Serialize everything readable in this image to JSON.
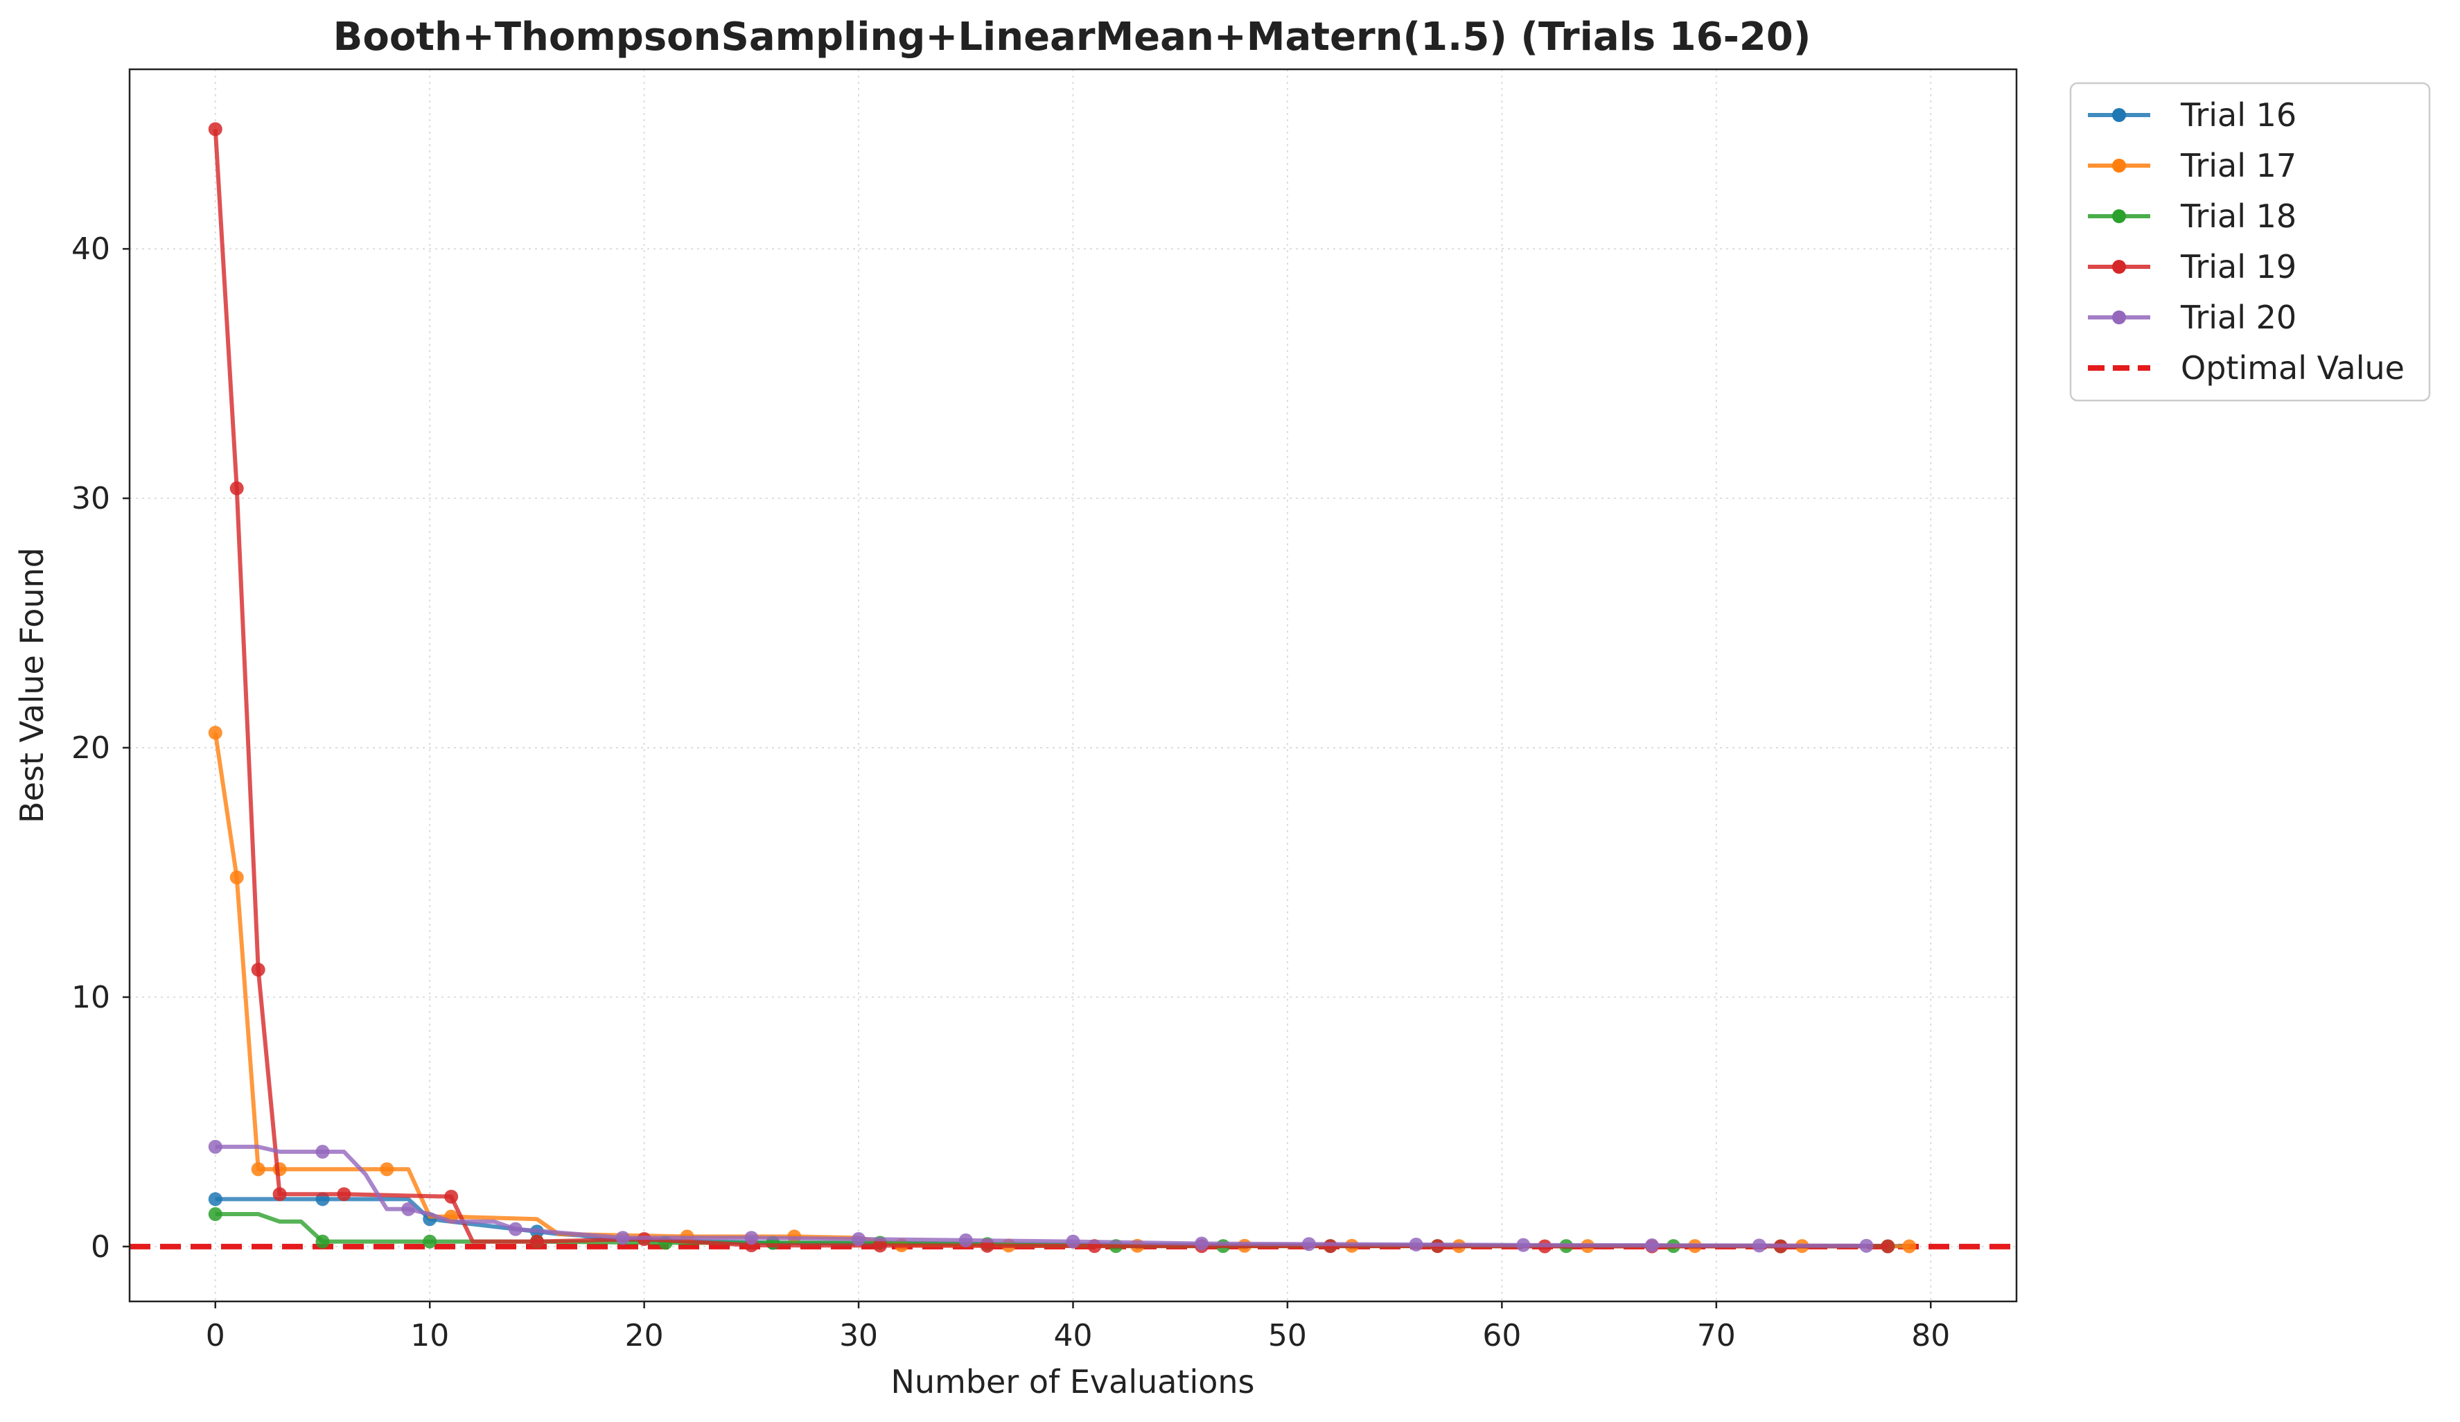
{
  "chart_data": {
    "type": "line",
    "title": "Booth+ThompsonSampling+LinearMean+Matern(1.5) (Trials 16-20)",
    "xlabel": "Number of Evaluations",
    "ylabel": "Best Value Found",
    "xlim": [
      -4,
      84
    ],
    "ylim": [
      -2.2,
      47.2
    ],
    "xticks": [
      0,
      10,
      20,
      30,
      40,
      50,
      60,
      70,
      80
    ],
    "yticks": [
      0,
      10,
      20,
      30,
      40
    ],
    "grid": true,
    "legend_position": "outside-top-right",
    "reference_line": {
      "name": "Optimal Value",
      "y": 0,
      "color": "#e41a1c",
      "style": "dashed"
    },
    "series": [
      {
        "name": "Trial 16",
        "color": "#1f77b4",
        "x": [
          0,
          5,
          9,
          10,
          15,
          16,
          17,
          18,
          20,
          26,
          30,
          40,
          50,
          60,
          70,
          79
        ],
        "y": [
          1.9,
          1.9,
          1.9,
          1.1,
          0.6,
          0.5,
          0.45,
          0.3,
          0.25,
          0.15,
          0.12,
          0.08,
          0.05,
          0.04,
          0.03,
          0.02
        ],
        "markers": [
          [
            0,
            1.9
          ],
          [
            5,
            1.9
          ],
          [
            10,
            1.1
          ],
          [
            15,
            0.6
          ],
          [
            26,
            0.15
          ]
        ]
      },
      {
        "name": "Trial 17",
        "color": "#ff7f0e",
        "x": [
          0,
          1,
          2,
          3,
          8,
          9,
          10,
          11,
          15,
          16,
          22,
          27,
          30,
          32,
          37,
          43,
          48,
          53,
          58,
          64,
          69,
          74,
          79
        ],
        "y": [
          20.6,
          14.8,
          3.1,
          3.1,
          3.1,
          3.1,
          1.2,
          1.2,
          1.1,
          0.5,
          0.4,
          0.4,
          0.35,
          0.05,
          0.04,
          0.03,
          0.03,
          0.03,
          0.02,
          0.02,
          0.02,
          0.02,
          0.01
        ],
        "markers": [
          [
            0,
            20.6
          ],
          [
            1,
            14.8
          ],
          [
            2,
            3.1
          ],
          [
            3,
            3.1
          ],
          [
            8,
            3.1
          ],
          [
            11,
            1.2
          ],
          [
            22,
            0.4
          ],
          [
            27,
            0.4
          ],
          [
            32,
            0.05
          ],
          [
            37,
            0.04
          ],
          [
            43,
            0.03
          ],
          [
            48,
            0.03
          ],
          [
            53,
            0.03
          ],
          [
            58,
            0.02
          ],
          [
            64,
            0.02
          ],
          [
            69,
            0.02
          ],
          [
            74,
            0.02
          ],
          [
            79,
            0.01
          ]
        ]
      },
      {
        "name": "Trial 18",
        "color": "#2ca02c",
        "x": [
          0,
          2,
          3,
          4,
          5,
          10,
          15,
          21,
          26,
          31,
          36,
          42,
          47,
          52,
          57,
          63,
          68,
          73,
          78
        ],
        "y": [
          1.3,
          1.3,
          1.0,
          1.0,
          0.2,
          0.2,
          0.2,
          0.15,
          0.15,
          0.15,
          0.1,
          0.02,
          0.02,
          0.02,
          0.02,
          0.02,
          0.02,
          0.01,
          0.01
        ],
        "markers": [
          [
            0,
            1.3
          ],
          [
            5,
            0.2
          ],
          [
            10,
            0.2
          ],
          [
            15,
            0.2
          ],
          [
            21,
            0.15
          ],
          [
            26,
            0.15
          ],
          [
            31,
            0.15
          ],
          [
            36,
            0.1
          ],
          [
            42,
            0.02
          ],
          [
            47,
            0.02
          ],
          [
            52,
            0.02
          ],
          [
            57,
            0.02
          ],
          [
            63,
            0.02
          ],
          [
            68,
            0.02
          ],
          [
            73,
            0.01
          ],
          [
            78,
            0.01
          ]
        ]
      },
      {
        "name": "Trial 19",
        "color": "#d62728",
        "x": [
          0,
          1,
          2,
          3,
          6,
          11,
          12,
          15,
          20,
          25,
          31,
          36,
          41,
          46,
          52,
          57,
          62,
          67,
          73,
          78
        ],
        "y": [
          44.8,
          30.4,
          11.1,
          2.1,
          2.1,
          2.0,
          0.2,
          0.2,
          0.3,
          0.05,
          0.04,
          0.03,
          0.02,
          0.02,
          0.02,
          0.02,
          0.01,
          0.01,
          0.01,
          0.01
        ],
        "markers": [
          [
            0,
            44.8
          ],
          [
            1,
            30.4
          ],
          [
            2,
            11.1
          ],
          [
            3,
            2.1
          ],
          [
            6,
            2.1
          ],
          [
            11,
            2.0
          ],
          [
            15,
            0.2
          ],
          [
            20,
            0.3
          ],
          [
            25,
            0.05
          ],
          [
            31,
            0.04
          ],
          [
            36,
            0.03
          ],
          [
            41,
            0.02
          ],
          [
            46,
            0.02
          ],
          [
            52,
            0.02
          ],
          [
            57,
            0.02
          ],
          [
            62,
            0.01
          ],
          [
            67,
            0.01
          ],
          [
            73,
            0.01
          ],
          [
            78,
            0.01
          ]
        ]
      },
      {
        "name": "Trial 20",
        "color": "#9467bd",
        "x": [
          0,
          1,
          2,
          3,
          5,
          6,
          7,
          8,
          9,
          10,
          11,
          12,
          13,
          14,
          19,
          25,
          30,
          35,
          40,
          46,
          51,
          56,
          61,
          67,
          72,
          77
        ],
        "y": [
          4.0,
          4.0,
          4.0,
          3.8,
          3.8,
          3.8,
          2.9,
          1.5,
          1.5,
          1.3,
          1.0,
          1.0,
          1.0,
          0.7,
          0.35,
          0.35,
          0.3,
          0.25,
          0.2,
          0.12,
          0.1,
          0.08,
          0.06,
          0.05,
          0.04,
          0.03
        ],
        "markers": [
          [
            0,
            4.0
          ],
          [
            5,
            3.8
          ],
          [
            9,
            1.5
          ],
          [
            14,
            0.7
          ],
          [
            19,
            0.35
          ],
          [
            25,
            0.35
          ],
          [
            30,
            0.3
          ],
          [
            35,
            0.25
          ],
          [
            40,
            0.2
          ],
          [
            46,
            0.12
          ],
          [
            51,
            0.1
          ],
          [
            56,
            0.08
          ],
          [
            61,
            0.06
          ],
          [
            67,
            0.05
          ],
          [
            72,
            0.04
          ],
          [
            77,
            0.03
          ]
        ]
      }
    ]
  }
}
